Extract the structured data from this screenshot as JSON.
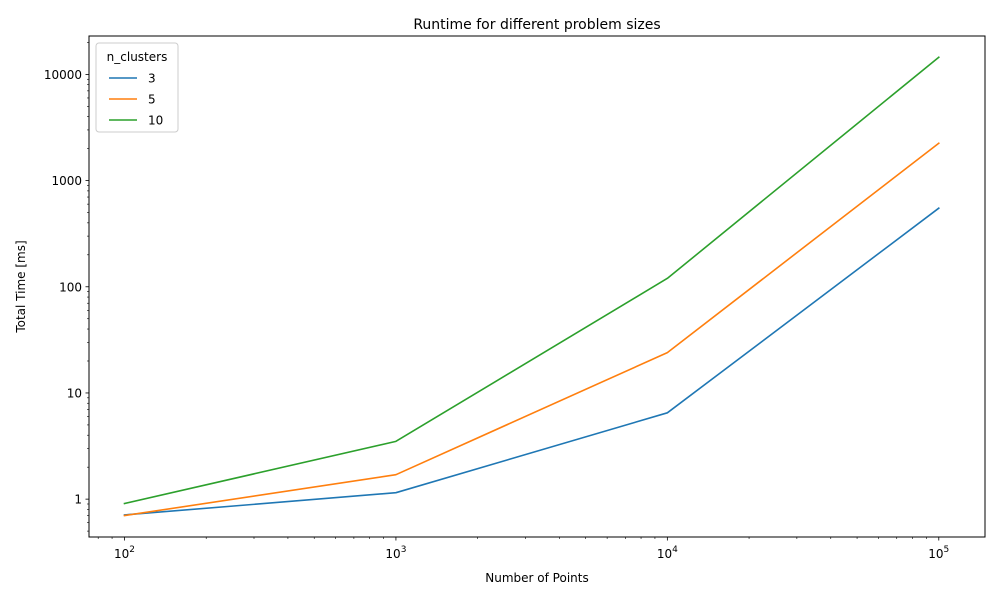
{
  "chart_data": {
    "type": "line",
    "title": "Runtime for different problem sizes",
    "xlabel": "Number of Points",
    "ylabel": "Total Time [ms]",
    "xscale": "log",
    "yscale": "log",
    "xlim": [
      74,
      148000
    ],
    "ylim": [
      0.44,
      23000
    ],
    "x": [
      100,
      1000,
      10000,
      100000
    ],
    "x_ticks": [
      {
        "value": 100,
        "base": "10",
        "exp": "2"
      },
      {
        "value": 1000,
        "base": "10",
        "exp": "3"
      },
      {
        "value": 10000,
        "base": "10",
        "exp": "4"
      },
      {
        "value": 100000,
        "base": "10",
        "exp": "5"
      }
    ],
    "y_ticks": [
      {
        "value": 1,
        "label": "1"
      },
      {
        "value": 10,
        "label": "10"
      },
      {
        "value": 100,
        "label": "100"
      },
      {
        "value": 1000,
        "label": "1000"
      },
      {
        "value": 10000,
        "label": "10000"
      }
    ],
    "legend": {
      "title": "n_clusters",
      "placement": "top-left"
    },
    "grid": false,
    "series": [
      {
        "name": "3",
        "color": "#1f77b4",
        "values": [
          0.71,
          1.15,
          6.5,
          550
        ]
      },
      {
        "name": "5",
        "color": "#ff7f0e",
        "values": [
          0.7,
          1.7,
          24,
          2250
        ]
      },
      {
        "name": "10",
        "color": "#2ca02c",
        "values": [
          0.91,
          3.5,
          120,
          14500
        ]
      }
    ]
  }
}
